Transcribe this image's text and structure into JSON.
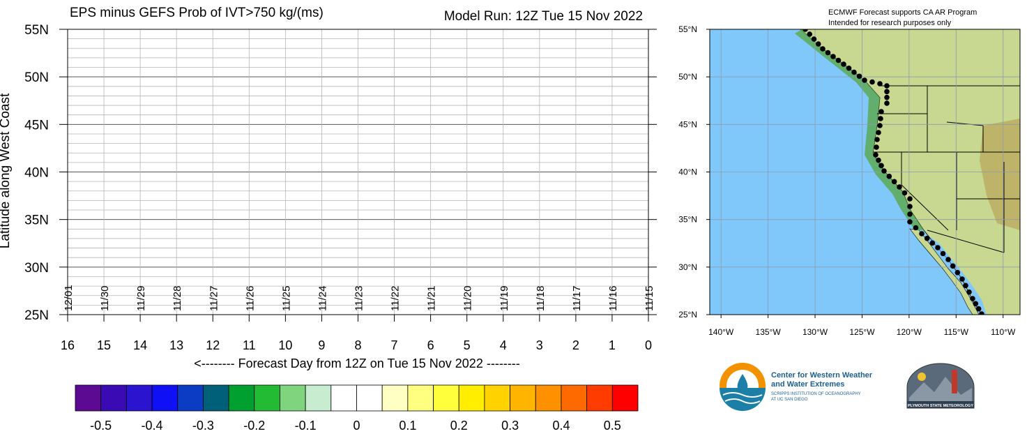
{
  "chart_data": {
    "type": "heatmap",
    "title": "EPS minus GEFS Prob of IVT>750 kg/(ms)",
    "subtitle": "Model Run: 12Z Tue 15 Nov 2022",
    "ylabel": "Latitude along West Coast",
    "xlabel": "<-------- Forecast Day from 12Z on Tue 15 Nov 2022 --------",
    "x_ticks": [
      16,
      15,
      14,
      13,
      12,
      11,
      10,
      9,
      8,
      7,
      6,
      5,
      4,
      3,
      2,
      1,
      0
    ],
    "date_labels": [
      "12/01",
      "11/30",
      "11/29",
      "11/28",
      "11/27",
      "11/26",
      "11/25",
      "11/24",
      "11/23",
      "11/22",
      "11/21",
      "11/20",
      "11/19",
      "11/18",
      "11/17",
      "11/16",
      "11/15"
    ],
    "y_ticks": [
      {
        "value": 55,
        "label": "55N"
      },
      {
        "value": 50,
        "label": "50N"
      },
      {
        "value": 45,
        "label": "45N"
      },
      {
        "value": 40,
        "label": "40N"
      },
      {
        "value": 35,
        "label": "35N"
      },
      {
        "value": 30,
        "label": "30N"
      },
      {
        "value": 25,
        "label": "25N"
      }
    ],
    "xlim": [
      16,
      0
    ],
    "ylim": [
      25,
      55
    ],
    "grid": true,
    "values": [],
    "colorbar": {
      "colors": [
        "#5b0a91",
        "#3a0bb5",
        "#2a14d0",
        "#1010f5",
        "#0c3cc4",
        "#00607a",
        "#00a030",
        "#22bb33",
        "#80d47e",
        "#c8ecd0",
        "#ffffff",
        "#ffffff",
        "#ffffc4",
        "#ffff80",
        "#ffff3c",
        "#ffee00",
        "#ffd200",
        "#ffb400",
        "#ff9000",
        "#ff6a00",
        "#ff3c00",
        "#ff0000"
      ],
      "labels": [
        "-0.5",
        "-0.4",
        "-0.3",
        "-0.2",
        "-0.1",
        "0",
        "0.1",
        "0.2",
        "0.3",
        "0.4",
        "0.5"
      ]
    }
  },
  "map": {
    "note_lines": [
      "ECMWF Forecast supports CA AR Program",
      "Intended for research purposes only"
    ],
    "lat_labels": [
      {
        "value": 55,
        "label": "55°N"
      },
      {
        "value": 50,
        "label": "50°N"
      },
      {
        "value": 45,
        "label": "45°N"
      },
      {
        "value": 40,
        "label": "40°N"
      },
      {
        "value": 35,
        "label": "35°N"
      },
      {
        "value": 30,
        "label": "30°N"
      },
      {
        "value": 25,
        "label": "25°N"
      }
    ],
    "lon_labels": [
      {
        "value": -140,
        "label": "140°W"
      },
      {
        "value": -135,
        "label": "135°W"
      },
      {
        "value": -130,
        "label": "130°W"
      },
      {
        "value": -125,
        "label": "125°W"
      },
      {
        "value": -120,
        "label": "120°W"
      },
      {
        "value": -115,
        "label": "115°W"
      },
      {
        "value": -110,
        "label": "110°W"
      }
    ],
    "ocean_color": "#80c8fa",
    "land_color": "#c8d890"
  },
  "logos": {
    "cw3e_line1": "Center for Western Weather",
    "cw3e_line2": "and Water Extremes",
    "cw3e_line3": "SCRIPPS INSTITUTION OF OCEANOGRAPHY",
    "cw3e_line4": "AT UC SAN DIEGO",
    "psu_text": "PLYMOUTH STATE METEOROLOGY"
  }
}
